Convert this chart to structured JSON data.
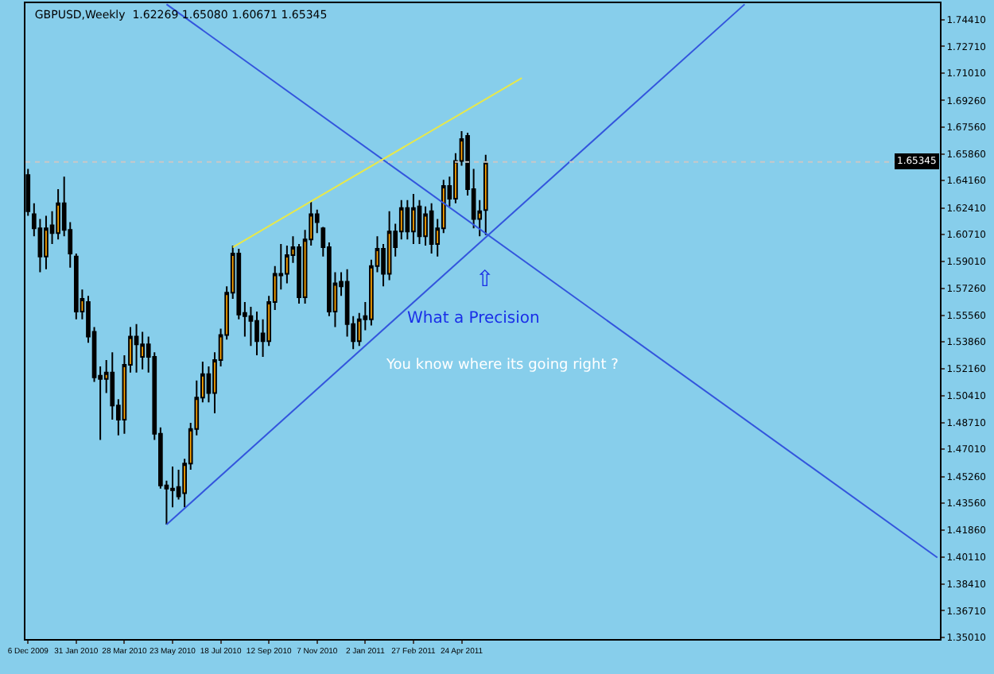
{
  "chart_data": {
    "type": "candlestick",
    "title": "GBPUSD,Weekly  1.62269 1.65080 1.60671 1.65345",
    "x": [
      "2009-12-06",
      "2009-12-13",
      "2009-12-20",
      "2009-12-27",
      "2010-01-03",
      "2010-01-10",
      "2010-01-17",
      "2010-01-24",
      "2010-01-31",
      "2010-02-07",
      "2010-02-14",
      "2010-02-21",
      "2010-02-28",
      "2010-03-07",
      "2010-03-14",
      "2010-03-21",
      "2010-03-28",
      "2010-04-04",
      "2010-04-11",
      "2010-04-18",
      "2010-04-25",
      "2010-05-02",
      "2010-05-09",
      "2010-05-16",
      "2010-05-23",
      "2010-05-30",
      "2010-06-06",
      "2010-06-13",
      "2010-06-20",
      "2010-06-27",
      "2010-07-04",
      "2010-07-11",
      "2010-07-18",
      "2010-07-25",
      "2010-08-01",
      "2010-08-08",
      "2010-08-15",
      "2010-08-22",
      "2010-08-29",
      "2010-09-05",
      "2010-09-12",
      "2010-09-19",
      "2010-09-26",
      "2010-10-03",
      "2010-10-10",
      "2010-10-17",
      "2010-10-24",
      "2010-10-31",
      "2010-11-07",
      "2010-11-14",
      "2010-11-21",
      "2010-11-28",
      "2010-12-05",
      "2010-12-12",
      "2010-12-19",
      "2010-12-26",
      "2011-01-02",
      "2011-01-09",
      "2011-01-16",
      "2011-01-23",
      "2011-01-30",
      "2011-02-06",
      "2011-02-13",
      "2011-02-20",
      "2011-02-27",
      "2011-03-06",
      "2011-03-13",
      "2011-03-20",
      "2011-03-27",
      "2011-04-03",
      "2011-04-10",
      "2011-04-17",
      "2011-04-24",
      "2011-05-01",
      "2011-05-08",
      "2011-05-15",
      "2011-05-22"
    ],
    "ohlc": [
      [
        1.645,
        1.649,
        1.619,
        1.622
      ],
      [
        1.62,
        1.627,
        1.606,
        1.611
      ],
      [
        1.611,
        1.617,
        1.583,
        1.593
      ],
      [
        1.593,
        1.619,
        1.585,
        1.611
      ],
      [
        1.613,
        1.622,
        1.601,
        1.608
      ],
      [
        1.608,
        1.636,
        1.604,
        1.627
      ],
      [
        1.627,
        1.644,
        1.606,
        1.61
      ],
      [
        1.61,
        1.615,
        1.586,
        1.595
      ],
      [
        1.593,
        1.595,
        1.553,
        1.558
      ],
      [
        1.558,
        1.572,
        1.553,
        1.566
      ],
      [
        1.564,
        1.568,
        1.538,
        1.542
      ],
      [
        1.545,
        1.548,
        1.513,
        1.516
      ],
      [
        1.517,
        1.523,
        1.476,
        1.515
      ],
      [
        1.515,
        1.527,
        1.506,
        1.519
      ],
      [
        1.519,
        1.532,
        1.489,
        1.498
      ],
      [
        1.498,
        1.502,
        1.479,
        1.489
      ],
      [
        1.489,
        1.53,
        1.48,
        1.524
      ],
      [
        1.524,
        1.548,
        1.519,
        1.542
      ],
      [
        1.542,
        1.55,
        1.519,
        1.537
      ],
      [
        1.529,
        1.545,
        1.521,
        1.537
      ],
      [
        1.537,
        1.542,
        1.519,
        1.529
      ],
      [
        1.529,
        1.532,
        1.476,
        1.48
      ],
      [
        1.48,
        1.484,
        1.445,
        1.447
      ],
      [
        1.447,
        1.45,
        1.422,
        1.445
      ],
      [
        1.444,
        1.459,
        1.433,
        1.445
      ],
      [
        1.446,
        1.457,
        1.438,
        1.44
      ],
      [
        1.442,
        1.464,
        1.433,
        1.461
      ],
      [
        1.461,
        1.487,
        1.457,
        1.483
      ],
      [
        1.483,
        1.514,
        1.479,
        1.503
      ],
      [
        1.503,
        1.526,
        1.5,
        1.518
      ],
      [
        1.518,
        1.523,
        1.5,
        1.506
      ],
      [
        1.506,
        1.532,
        1.493,
        1.527
      ],
      [
        1.527,
        1.547,
        1.523,
        1.543
      ],
      [
        1.543,
        1.574,
        1.54,
        1.57
      ],
      [
        1.57,
        1.6,
        1.566,
        1.595
      ],
      [
        1.595,
        1.598,
        1.553,
        1.556
      ],
      [
        1.557,
        1.564,
        1.542,
        1.555
      ],
      [
        1.555,
        1.561,
        1.536,
        1.552
      ],
      [
        1.552,
        1.558,
        1.53,
        1.539
      ],
      [
        1.544,
        1.553,
        1.529,
        1.539
      ],
      [
        1.539,
        1.568,
        1.536,
        1.564
      ],
      [
        1.564,
        1.587,
        1.559,
        1.582
      ],
      [
        1.582,
        1.601,
        1.572,
        1.581
      ],
      [
        1.582,
        1.6,
        1.576,
        1.594
      ],
      [
        1.594,
        1.606,
        1.589,
        1.599
      ],
      [
        1.599,
        1.601,
        1.563,
        1.567
      ],
      [
        1.567,
        1.61,
        1.563,
        1.604
      ],
      [
        1.604,
        1.628,
        1.6,
        1.62
      ],
      [
        1.62,
        1.623,
        1.608,
        1.615
      ],
      [
        1.611,
        1.612,
        1.593,
        1.599
      ],
      [
        1.599,
        1.602,
        1.555,
        1.558
      ],
      [
        1.558,
        1.583,
        1.548,
        1.576
      ],
      [
        1.577,
        1.583,
        1.568,
        1.574
      ],
      [
        1.577,
        1.585,
        1.542,
        1.55
      ],
      [
        1.55,
        1.555,
        1.534,
        1.539
      ],
      [
        1.539,
        1.557,
        1.536,
        1.553
      ],
      [
        1.555,
        1.564,
        1.546,
        1.553
      ],
      [
        1.553,
        1.591,
        1.549,
        1.587
      ],
      [
        1.587,
        1.606,
        1.583,
        1.598
      ],
      [
        1.598,
        1.601,
        1.574,
        1.582
      ],
      [
        1.582,
        1.622,
        1.578,
        1.609
      ],
      [
        1.609,
        1.614,
        1.593,
        1.599
      ],
      [
        1.609,
        1.629,
        1.604,
        1.624
      ],
      [
        1.624,
        1.629,
        1.604,
        1.609
      ],
      [
        1.609,
        1.633,
        1.601,
        1.624
      ],
      [
        1.625,
        1.629,
        1.601,
        1.606
      ],
      [
        1.606,
        1.625,
        1.6,
        1.62
      ],
      [
        1.622,
        1.627,
        1.595,
        1.601
      ],
      [
        1.601,
        1.617,
        1.593,
        1.611
      ],
      [
        1.611,
        1.642,
        1.608,
        1.638
      ],
      [
        1.638,
        1.644,
        1.625,
        1.63
      ],
      [
        1.63,
        1.659,
        1.627,
        1.654
      ],
      [
        1.654,
        1.673,
        1.651,
        1.668
      ],
      [
        1.67,
        1.672,
        1.632,
        1.636
      ],
      [
        1.636,
        1.649,
        1.611,
        1.617
      ],
      [
        1.617,
        1.629,
        1.606,
        1.622
      ],
      [
        1.62269,
        1.658,
        1.60671,
        1.65345
      ]
    ],
    "series": [
      {
        "type": "line",
        "color": "#3355dd",
        "x": [
          "2010-05-16",
          "2012-10-28"
        ],
        "values": [
          1.754,
          1.401
        ]
      },
      {
        "type": "line",
        "color": "#3355dd",
        "x": [
          "2010-05-16",
          "2012-03-18"
        ],
        "values": [
          1.422,
          1.754
        ]
      },
      {
        "type": "line",
        "color": "#e8e84a",
        "x": [
          "2010-08-01",
          "2011-07-03"
        ],
        "values": [
          1.599,
          1.707
        ]
      }
    ],
    "ref_lines": [
      {
        "axis": "y",
        "value": 1.65345,
        "label": "1.65345",
        "color": "#c8c8c8",
        "line_style": "dotted"
      }
    ],
    "annotations": [
      "⇧",
      "What a Precision",
      "You know where its going right ?"
    ],
    "xlim": [
      "2009-12-03",
      "2012-10-31"
    ],
    "xticks": [
      {
        "value": "2009-12-06",
        "label": "6 Dec 2009"
      },
      {
        "value": "2010-01-31",
        "label": "31 Jan 2010"
      },
      {
        "value": "2010-03-28",
        "label": "28 Mar 2010"
      },
      {
        "value": "2010-05-23",
        "label": "23 May 2010"
      },
      {
        "value": "2010-07-18",
        "label": "18 Jul 2010"
      },
      {
        "value": "2010-09-12",
        "label": "12 Sep 2010"
      },
      {
        "value": "2010-11-07",
        "label": "7 Nov 2010"
      },
      {
        "value": "2011-01-02",
        "label": "2 Jan 2011"
      },
      {
        "value": "2011-02-27",
        "label": "27 Feb 2011"
      },
      {
        "value": "2011-04-24",
        "label": "24 Apr 2011"
      }
    ],
    "ylim": [
      1.349,
      1.7547
    ],
    "yticks": [
      {
        "value": 1.7441,
        "label": "1.74410"
      },
      {
        "value": 1.7271,
        "label": "1.72710"
      },
      {
        "value": 1.7101,
        "label": "1.71010"
      },
      {
        "value": 1.6926,
        "label": "1.69260"
      },
      {
        "value": 1.6756,
        "label": "1.67560"
      },
      {
        "value": 1.6586,
        "label": "1.65860"
      },
      {
        "value": 1.6416,
        "label": "1.64160"
      },
      {
        "value": 1.6241,
        "label": "1.62410"
      },
      {
        "value": 1.6071,
        "label": "1.60710"
      },
      {
        "value": 1.5901,
        "label": "1.59010"
      },
      {
        "value": 1.5726,
        "label": "1.57260"
      },
      {
        "value": 1.5556,
        "label": "1.55560"
      },
      {
        "value": 1.5386,
        "label": "1.53860"
      },
      {
        "value": 1.5216,
        "label": "1.52160"
      },
      {
        "value": 1.5041,
        "label": "1.50410"
      },
      {
        "value": 1.4871,
        "label": "1.48710"
      },
      {
        "value": 1.4701,
        "label": "1.47010"
      },
      {
        "value": 1.4526,
        "label": "1.45260"
      },
      {
        "value": 1.4356,
        "label": "1.43560"
      },
      {
        "value": 1.4186,
        "label": "1.41860"
      },
      {
        "value": 1.4011,
        "label": "1.40110"
      },
      {
        "value": 1.3841,
        "label": "1.38410"
      },
      {
        "value": 1.3671,
        "label": "1.36710"
      },
      {
        "value": 1.3501,
        "label": "1.35010"
      }
    ],
    "grid": false
  }
}
